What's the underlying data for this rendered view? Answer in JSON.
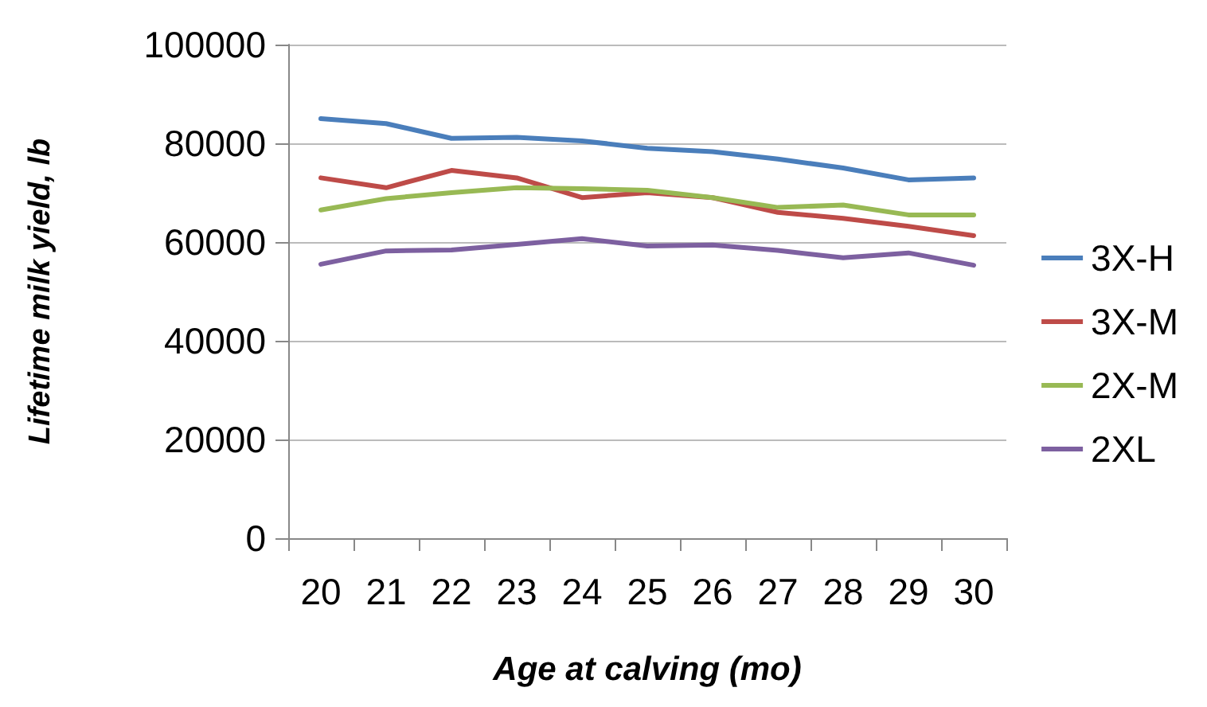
{
  "chart_data": {
    "type": "line",
    "xlabel": "Age at calving (mo)",
    "ylabel": "Lifetime milk yield, lb",
    "categories": [
      "20",
      "21",
      "22",
      "23",
      "24",
      "25",
      "26",
      "27",
      "28",
      "29",
      "30"
    ],
    "series": [
      {
        "name": "3X-H",
        "color": "#4a7ebb",
        "values": [
          85000,
          84000,
          81000,
          81200,
          80500,
          79000,
          78300,
          76800,
          75000,
          72600,
          73000
        ]
      },
      {
        "name": "3X-M",
        "color": "#be4b48",
        "values": [
          73000,
          71000,
          74500,
          73000,
          69000,
          70000,
          69000,
          66000,
          64800,
          63200,
          61300
        ]
      },
      {
        "name": "2X-M",
        "color": "#98b954",
        "values": [
          66500,
          68800,
          70000,
          71000,
          70800,
          70500,
          69000,
          67000,
          67500,
          65500,
          65500
        ]
      },
      {
        "name": "2XL",
        "color": "#7d60a0",
        "values": [
          55500,
          58200,
          58400,
          59500,
          60700,
          59200,
          59400,
          58300,
          56800,
          57800,
          55300
        ]
      }
    ],
    "ylim": [
      0,
      100000
    ],
    "yticks": [
      0,
      20000,
      40000,
      60000,
      80000,
      100000
    ],
    "grid": "y",
    "legend": "right",
    "marker": "none",
    "line_style": "solid"
  }
}
